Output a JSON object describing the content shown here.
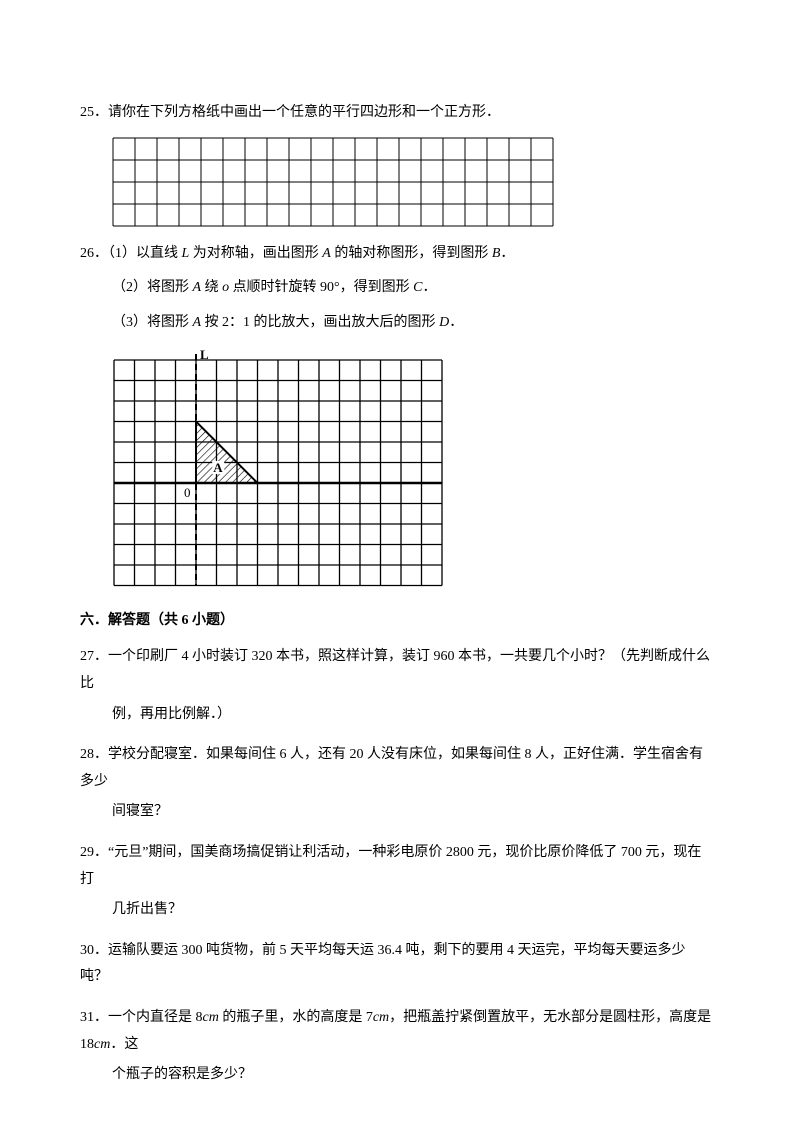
{
  "q25": {
    "num": "25．",
    "text": "请你在下列方格纸中画出一个任意的平行四边形和一个正方形．",
    "grid": {
      "cols": 20,
      "rows": 4,
      "cell": 22,
      "stroke": "#000000",
      "strokeWidth": 1
    }
  },
  "q26": {
    "num": "26．",
    "part1_prefix": "（1）以直线 ",
    "part1_L": "L",
    "part1_mid1": " 为对称轴，画出图形 ",
    "part1_A": "A",
    "part1_mid2": " 的轴对称图形，得到图形 ",
    "part1_B": "B",
    "part1_suffix": "．",
    "part2_prefix": "（2）将图形 ",
    "part2_A": "A",
    "part2_mid1": " 绕 ",
    "part2_o": "o",
    "part2_mid2": " 点顺时针旋转 90°，得到图形 ",
    "part2_C": "C",
    "part2_suffix": "．",
    "part3_prefix": "（3）将图形 ",
    "part3_A": "A",
    "part3_mid": " 按 2：1 的比放大，画出放大后的图形 ",
    "part3_D": "D",
    "part3_suffix": "．",
    "grid": {
      "cols": 16,
      "rows": 11,
      "cell": 20.5,
      "stroke": "#000000",
      "strokeWidth": 1.3,
      "labelL": "L",
      "labelO": "0",
      "labelA": "A",
      "axis_vertical_col": 4,
      "axis_horizontal_row": 6,
      "dashed_col": 4,
      "dash": "6,4",
      "triangle": {
        "col_start": 4,
        "row_baseline": 6,
        "width_cells": 3,
        "height_cells": 3,
        "fill_hatch_spacing": 5
      }
    }
  },
  "section6": {
    "title": "六．解答题（共 6 小题）"
  },
  "q27": {
    "num": "27．",
    "line1": "一个印刷厂 4 小时装订 320 本书，照这样计算，装订 960 本书，一共要几个小时？（先判断成什么比",
    "line2": "例，再用比例解．）"
  },
  "q28": {
    "num": "28．",
    "line1": "学校分配寝室．如果每间住 6 人，还有 20 人没有床位，如果每间住 8 人，正好住满．学生宿舍有多少",
    "line2": "间寝室？"
  },
  "q29": {
    "num": "29．",
    "line1": "“元旦”期间，国美商场搞促销让利活动，一种彩电原价 2800 元，现价比原价降低了 700 元，现在打",
    "line2": "几折出售？"
  },
  "q30": {
    "num": "30．",
    "text": "运输队要运 300 吨货物，前 5 天平均每天运 36.4 吨，剩下的要用 4 天运完，平均每天要运多少吨？"
  },
  "q31": {
    "num": "31．",
    "line1_a": "一个内直径是 8",
    "line1_cm1": "cm",
    "line1_b": " 的瓶子里，水的高度是 7",
    "line1_cm2": "cm",
    "line1_c": "，把瓶盖拧紧倒置放平，无水部分是圆柱形，高度是 18",
    "line1_cm3": "cm",
    "line1_d": "．这",
    "line2": "个瓶子的容积是多少？"
  }
}
